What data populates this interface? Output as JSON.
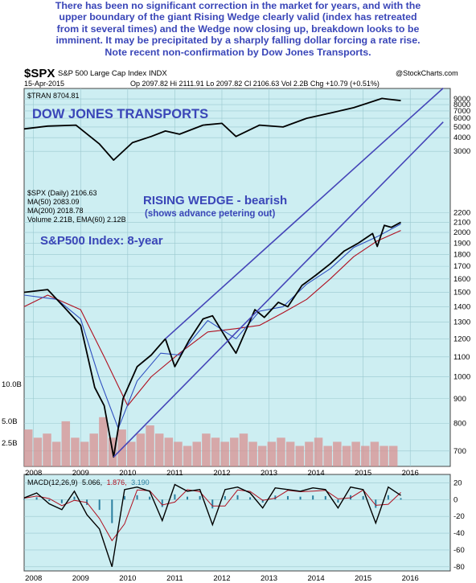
{
  "caption": "There has been no significant correction in the market for years, and with the\nupper boundary of the giant Rising Wedge clearly valid (index has retreated\nfrom it several times) and the Wedge now closing up, breakdown looks to be\nimminent. It may be precipitated by a sharply falling dollar forcing a rate rise.\nNote recent non-confirmation by Dow Jones Transports.",
  "header": {
    "symbol": "$SPX",
    "name": "S&P 500 Large Cap Index",
    "exchange": "INDX",
    "date": "15-Apr-2015",
    "stats": "Op 2097.82  Hi 2111.91  Lo 2097.82  Cl 2106.63  Vol 2.2B  Chg +10.79 (+0.51%)",
    "watermark": "@StockCharts.com"
  },
  "legend": {
    "tran": "$TRAN 8704.81",
    "spx": "$SPX (Daily) 2106.63",
    "ma50": "MA(50) 2083.09",
    "ma200": "MA(200) 2018.78",
    "volume": "Volume 2.21B, EMA(60) 2.12B",
    "macd_name": "MACD(12,26,9)",
    "macd_val": "5.066,",
    "signal_val": "1.876,",
    "hist_val": "3.190"
  },
  "annotations": {
    "dow": "DOW JONES TRANSPORTS",
    "wedge": "RISING WEDGE - bearish",
    "wedge_sub": "(shows advance petering out)",
    "index": "S&P500 Index: 8-year"
  },
  "colors": {
    "panel_bg": "#cdeef2",
    "annotation": "#3a46b8",
    "price": "#000000",
    "ma50": "#3050c0",
    "ma200": "#b01020",
    "volume": "#d89090",
    "signal": "#b01020",
    "histogram": "#2a7fa0",
    "trendline": "#4545b8"
  },
  "chart_data": {
    "type": "line",
    "x_axis": [
      "2008",
      "2009",
      "2010",
      "2011",
      "2012",
      "2013",
      "2014",
      "2015",
      "2016"
    ],
    "y_axis_price": [
      "700",
      "800",
      "900",
      "1000",
      "1100",
      "1200",
      "1300",
      "1400",
      "1500",
      "1600",
      "1700",
      "1800",
      "1900",
      "2000",
      "2100",
      "2200",
      "3000",
      "4000",
      "5000",
      "6000",
      "7000",
      "8000",
      "9000"
    ],
    "y_axis_volume": [
      "2.5B",
      "5.0B",
      "10.0B"
    ],
    "y_axis_macd": [
      "20",
      "0",
      "-20",
      "-40",
      "-60",
      "-80"
    ],
    "series": [
      {
        "name": "$TRAN",
        "x": [
          2007.3,
          2007.8,
          2008.4,
          2008.9,
          2009.2,
          2009.6,
          2010.0,
          2010.3,
          2010.6,
          2011.1,
          2011.5,
          2011.8,
          2012.3,
          2012.8,
          2013.3,
          2013.8,
          2014.3,
          2014.9,
          2015.0,
          2015.3
        ],
        "values": [
          4800,
          5100,
          5200,
          3500,
          2500,
          3600,
          4100,
          4600,
          4300,
          5200,
          5400,
          4100,
          5200,
          5000,
          6000,
          6700,
          7500,
          9100,
          9000,
          8700
        ]
      },
      {
        "name": "$SPX",
        "x": [
          2007.3,
          2007.8,
          2008.2,
          2008.5,
          2008.8,
          2009.0,
          2009.2,
          2009.4,
          2009.7,
          2010.0,
          2010.3,
          2010.5,
          2010.8,
          2011.1,
          2011.3,
          2011.6,
          2011.8,
          2012.2,
          2012.4,
          2012.7,
          2012.9,
          2013.2,
          2013.5,
          2013.8,
          2014.1,
          2014.4,
          2014.7,
          2014.8,
          2014.95,
          2015.1,
          2015.3
        ],
        "values": [
          1500,
          1520,
          1380,
          1280,
          950,
          870,
          680,
          900,
          1050,
          1110,
          1200,
          1050,
          1190,
          1320,
          1340,
          1200,
          1120,
          1380,
          1330,
          1430,
          1400,
          1550,
          1630,
          1720,
          1830,
          1900,
          1990,
          1870,
          2070,
          2050,
          2100
        ]
      },
      {
        "name": "MA(50)",
        "x": [
          2007.3,
          2008.0,
          2008.5,
          2008.9,
          2009.3,
          2009.7,
          2010.2,
          2010.6,
          2011.2,
          2011.8,
          2012.3,
          2012.8,
          2013.3,
          2013.8,
          2014.3,
          2014.8,
          2015.3
        ],
        "values": [
          1480,
          1450,
          1320,
          990,
          780,
          980,
          1120,
          1110,
          1310,
          1200,
          1370,
          1400,
          1560,
          1680,
          1860,
          1960,
          2083
        ]
      },
      {
        "name": "MA(200)",
        "x": [
          2007.3,
          2007.8,
          2008.5,
          2009.0,
          2009.5,
          2010.0,
          2010.6,
          2011.2,
          2011.8,
          2012.3,
          2012.8,
          2013.3,
          2013.8,
          2014.3,
          2014.8,
          2015.3
        ],
        "values": [
          1400,
          1480,
          1380,
          1100,
          870,
          1000,
          1120,
          1240,
          1260,
          1280,
          1360,
          1450,
          1600,
          1780,
          1920,
          2019
        ]
      }
    ],
    "volume_bars": [
      4.5,
      3.5,
      4.0,
      3.0,
      5.5,
      3.5,
      3.0,
      4.0,
      6.0,
      3.5,
      4.5,
      3.0,
      4.0,
      5.0,
      4.0,
      3.5,
      3.0,
      2.5,
      3.0,
      4.0,
      3.5,
      3.0,
      3.5,
      4.0,
      3.0,
      2.5,
      3.0,
      3.5,
      3.0,
      2.5,
      3.0,
      3.5,
      2.5,
      3.0,
      2.5,
      3.0,
      2.5,
      3.0,
      2.5,
      2.5
    ],
    "macd": [
      2,
      8,
      -5,
      -12,
      10,
      -18,
      -35,
      -80,
      12,
      15,
      10,
      -25,
      18,
      10,
      12,
      -30,
      12,
      15,
      8,
      -10,
      14,
      12,
      10,
      14,
      12,
      -10,
      15,
      12,
      -28,
      15,
      5
    ],
    "trendlines": [
      {
        "name": "wedge-upper",
        "from": [
          2010.3,
          1200
        ],
        "to": [
          2016.2,
          4000
        ]
      },
      {
        "name": "wedge-lower",
        "from": [
          2009.2,
          680
        ],
        "to": [
          2016.2,
          3400
        ]
      }
    ]
  }
}
